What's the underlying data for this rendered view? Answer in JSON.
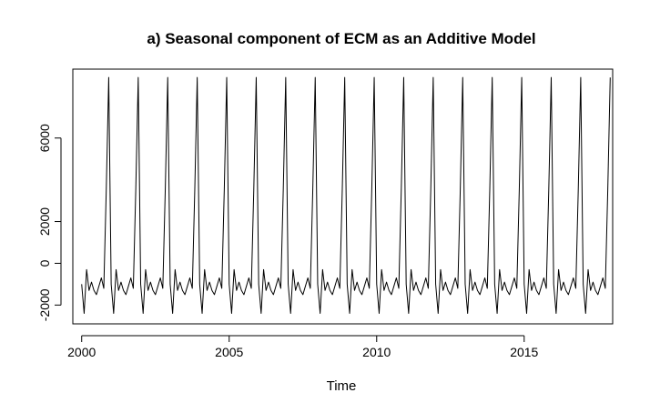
{
  "chart_data": {
    "type": "line",
    "title": "a) Seasonal component of ECM as an Additive Model",
    "xlabel": "Time",
    "ylabel": "",
    "xlim": [
      1999.7,
      2018.0
    ],
    "ylim": [
      -2900,
      9300
    ],
    "x_ticks": [
      2000,
      2005,
      2010,
      2015
    ],
    "x_tick_labels": [
      "2000",
      "2005",
      "2010",
      "2015"
    ],
    "y_ticks": [
      -2000,
      0,
      2000,
      6000
    ],
    "y_tick_labels": [
      "-2000",
      "0",
      "2000",
      "6000"
    ],
    "grid": false,
    "legend": "none",
    "series": [
      {
        "start": 2000.0,
        "frequency": 12,
        "cycles": 18,
        "seasonal_pattern": [
          -1000,
          -2400,
          -300,
          -1300,
          -900,
          -1300,
          -1500,
          -1100,
          -700,
          -1200,
          3500,
          8900
        ],
        "color": "#000000"
      }
    ]
  }
}
